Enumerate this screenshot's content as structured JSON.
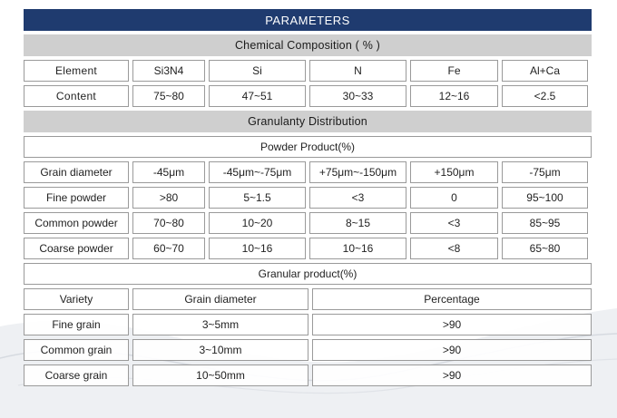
{
  "title": "PARAMETERS",
  "chemical": {
    "heading": "Chemical Composition ( % )",
    "element_row": [
      "Element",
      "Si3N4",
      "Si",
      "N",
      "Fe",
      "Al+Ca"
    ],
    "content_row": [
      "Content",
      "75~80",
      "47~51",
      "30~33",
      "12~16",
      "<2.5"
    ]
  },
  "granularity": {
    "heading": "Granulanty Distribution",
    "powder_heading": "Powder Product(%)",
    "powder_rows": [
      [
        "Grain diameter",
        "-45μm",
        "-45μm~-75μm",
        "+75μm~-150μm",
        "+150μm",
        "-75μm"
      ],
      [
        "Fine powder",
        ">80",
        "5~1.5",
        "<3",
        "0",
        "95~100"
      ],
      [
        "Common powder",
        "70~80",
        "10~20",
        "8~15",
        "<3",
        "85~95"
      ],
      [
        "Coarse powder",
        "60~70",
        "10~16",
        "10~16",
        "<8",
        "65~80"
      ]
    ],
    "granular_heading": "Granular product(%)",
    "granular_rows": [
      [
        "Variety",
        "Grain diameter",
        "Percentage"
      ],
      [
        "Fine grain",
        "3~5mm",
        ">90"
      ],
      [
        "Common grain",
        "3~10mm",
        ">90"
      ],
      [
        "Coarse grain",
        "10~50mm",
        ">90"
      ]
    ]
  }
}
